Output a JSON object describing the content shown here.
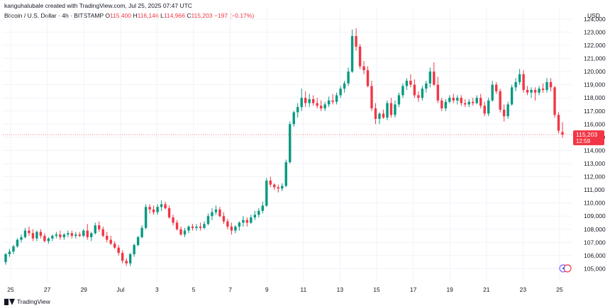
{
  "header": {
    "text": "kanguhalubale created with TradingView.com, Jul 25, 2025 07:47 UTC"
  },
  "legend": {
    "symbol": "Bitcoin / U.S. Dollar · 4h · BITSTAMP",
    "o_label": "O",
    "o_value": "115,400",
    "h_label": "H",
    "h_value": "116,146",
    "l_label": "L",
    "l_value": "114,966",
    "c_label": "C",
    "c_value": "115,203",
    "change": "−197 (−0.17%)"
  },
  "currency": "USD",
  "footer": {
    "brand": "TradingView"
  },
  "colors": {
    "up": "#089981",
    "down": "#f23645",
    "grid": "#f0f3fa",
    "text": "#131722",
    "tag": "#f23645"
  },
  "chart_data": {
    "type": "candlestick",
    "interval": "4h",
    "y_axis": {
      "min": 104000,
      "max": 124800,
      "ticks": [
        105000,
        106000,
        107000,
        108000,
        109000,
        110000,
        111000,
        112000,
        113000,
        114000,
        115000,
        116000,
        117000,
        118000,
        119000,
        120000,
        121000,
        122000,
        123000,
        124000
      ],
      "tick_labels": [
        "105,000",
        "106,000",
        "107,000",
        "108,000",
        "109,000",
        "110,000",
        "111,000",
        "112,000",
        "113,000",
        "114,000",
        "115,000",
        "116,000",
        "117,000",
        "118,000",
        "119,000",
        "120,000",
        "121,000",
        "122,000",
        "123,000",
        "124,000"
      ]
    },
    "x_axis": {
      "labels": [
        "25",
        "27",
        "29",
        "Jul",
        "3",
        "5",
        "7",
        "9",
        "11",
        "13",
        "15",
        "17",
        "19",
        "21",
        "23",
        "25"
      ]
    },
    "last_price": {
      "value": 115203,
      "label": "115,203",
      "countdown": "12:59"
    },
    "candles": [
      [
        105500,
        106200,
        105300,
        106100
      ],
      [
        106100,
        106500,
        105900,
        106300
      ],
      [
        106300,
        106800,
        106100,
        106700
      ],
      [
        106700,
        107300,
        106600,
        107200
      ],
      [
        107200,
        107600,
        107000,
        107400
      ],
      [
        107400,
        108100,
        107300,
        107900
      ],
      [
        107900,
        108200,
        107500,
        107700
      ],
      [
        107700,
        108000,
        107100,
        107300
      ],
      [
        107300,
        107900,
        107100,
        107800
      ],
      [
        107800,
        108000,
        107300,
        107500
      ],
      [
        107500,
        107700,
        107000,
        107100
      ],
      [
        107100,
        107400,
        106900,
        107300
      ],
      [
        107300,
        107600,
        107100,
        107500
      ],
      [
        107500,
        107800,
        107300,
        107600
      ],
      [
        107600,
        107900,
        107200,
        107400
      ],
      [
        107400,
        107700,
        107200,
        107600
      ],
      [
        107600,
        107900,
        107400,
        107700
      ],
      [
        107700,
        107900,
        107300,
        107500
      ],
      [
        107500,
        107800,
        107300,
        107600
      ],
      [
        107600,
        107800,
        107400,
        107500
      ],
      [
        107500,
        108000,
        107400,
        107900
      ],
      [
        107900,
        108400,
        107200,
        107400
      ],
      [
        107400,
        107800,
        107100,
        107700
      ],
      [
        107700,
        108500,
        107600,
        108300
      ],
      [
        108300,
        108600,
        107800,
        108000
      ],
      [
        108000,
        108200,
        107400,
        107500
      ],
      [
        107500,
        107800,
        107000,
        107200
      ],
      [
        107200,
        107500,
        106800,
        106900
      ],
      [
        106900,
        107100,
        106500,
        106600
      ],
      [
        106600,
        106800,
        106000,
        106200
      ],
      [
        106200,
        106400,
        105400,
        105600
      ],
      [
        105600,
        105800,
        105200,
        105400
      ],
      [
        105400,
        106200,
        105200,
        106100
      ],
      [
        106100,
        106900,
        105900,
        106800
      ],
      [
        106800,
        107500,
        106700,
        107400
      ],
      [
        107400,
        108300,
        107300,
        108100
      ],
      [
        108100,
        109900,
        108000,
        109700
      ],
      [
        109700,
        109900,
        109200,
        109500
      ],
      [
        109500,
        109800,
        109100,
        109300
      ],
      [
        109300,
        109900,
        109100,
        109700
      ],
      [
        109700,
        110200,
        109400,
        109900
      ],
      [
        109900,
        110100,
        109500,
        109600
      ],
      [
        109600,
        109800,
        108800,
        108900
      ],
      [
        108900,
        109100,
        108300,
        108500
      ],
      [
        108500,
        108700,
        107900,
        108000
      ],
      [
        108000,
        108200,
        107500,
        107600
      ],
      [
        107600,
        108100,
        107400,
        107900
      ],
      [
        107900,
        108300,
        107700,
        108200
      ],
      [
        108200,
        108400,
        107900,
        108100
      ],
      [
        108100,
        108400,
        107900,
        108200
      ],
      [
        108200,
        108500,
        107900,
        108100
      ],
      [
        108100,
        108600,
        108000,
        108400
      ],
      [
        108400,
        109200,
        108300,
        109000
      ],
      [
        109000,
        109600,
        108700,
        109300
      ],
      [
        109300,
        109800,
        109100,
        109500
      ],
      [
        109500,
        109700,
        108900,
        109000
      ],
      [
        109000,
        109300,
        108400,
        108600
      ],
      [
        108600,
        108800,
        108000,
        108200
      ],
      [
        108200,
        108500,
        107600,
        107900
      ],
      [
        107900,
        108300,
        107700,
        108200
      ],
      [
        108200,
        108600,
        107900,
        108500
      ],
      [
        108500,
        109000,
        108200,
        108700
      ],
      [
        108700,
        108900,
        108200,
        108500
      ],
      [
        108500,
        109100,
        108400,
        108900
      ],
      [
        108900,
        109400,
        108700,
        109100
      ],
      [
        109100,
        109600,
        108900,
        109400
      ],
      [
        109400,
        110100,
        109200,
        109800
      ],
      [
        109800,
        111900,
        109700,
        111700
      ],
      [
        111700,
        112000,
        111200,
        111400
      ],
      [
        111400,
        111500,
        111000,
        111200
      ],
      [
        111200,
        111400,
        110800,
        111100
      ],
      [
        111100,
        111500,
        110900,
        111300
      ],
      [
        111300,
        113300,
        111200,
        113100
      ],
      [
        113100,
        116200,
        113000,
        116000
      ],
      [
        116000,
        117000,
        115800,
        116900
      ],
      [
        116900,
        117600,
        116500,
        117300
      ],
      [
        117300,
        118700,
        117000,
        118000
      ],
      [
        118000,
        118500,
        117300,
        117600
      ],
      [
        117600,
        118300,
        117300,
        117900
      ],
      [
        117900,
        118200,
        117400,
        117600
      ],
      [
        117600,
        118000,
        117200,
        117400
      ],
      [
        117400,
        117800,
        117000,
        117200
      ],
      [
        117200,
        117700,
        117000,
        117500
      ],
      [
        117500,
        118100,
        117300,
        117800
      ],
      [
        117800,
        118300,
        117500,
        117700
      ],
      [
        117700,
        118400,
        117500,
        118200
      ],
      [
        118200,
        118900,
        118000,
        118700
      ],
      [
        118700,
        119300,
        118400,
        119100
      ],
      [
        119100,
        120300,
        118900,
        120000
      ],
      [
        120000,
        123200,
        119900,
        122700
      ],
      [
        122700,
        123300,
        121600,
        121900
      ],
      [
        121900,
        122100,
        120200,
        120400
      ],
      [
        120400,
        120800,
        119800,
        120100
      ],
      [
        120100,
        120400,
        118800,
        118900
      ],
      [
        118900,
        119300,
        117000,
        117200
      ],
      [
        117200,
        117600,
        116000,
        116400
      ],
      [
        116400,
        116900,
        116000,
        116800
      ],
      [
        116800,
        117100,
        116400,
        116500
      ],
      [
        116500,
        117800,
        116300,
        117600
      ],
      [
        117600,
        118000,
        116500,
        116700
      ],
      [
        116700,
        117800,
        116500,
        117500
      ],
      [
        117500,
        118400,
        117300,
        118200
      ],
      [
        118200,
        119100,
        118000,
        118900
      ],
      [
        118900,
        119500,
        118600,
        119300
      ],
      [
        119300,
        119800,
        118800,
        119000
      ],
      [
        119000,
        119400,
        118000,
        118200
      ],
      [
        118200,
        118500,
        117700,
        118000
      ],
      [
        118000,
        118900,
        117800,
        118700
      ],
      [
        118700,
        119300,
        118400,
        119100
      ],
      [
        119100,
        120300,
        118800,
        120000
      ],
      [
        120000,
        120700,
        118900,
        119000
      ],
      [
        119000,
        119600,
        117600,
        117800
      ],
      [
        117800,
        118000,
        117000,
        117200
      ],
      [
        117200,
        117900,
        117000,
        117700
      ],
      [
        117700,
        118200,
        117600,
        118000
      ],
      [
        118000,
        118300,
        117600,
        117800
      ],
      [
        117800,
        118200,
        117500,
        118000
      ],
      [
        118000,
        118200,
        117400,
        117600
      ],
      [
        117600,
        117900,
        117300,
        117500
      ],
      [
        117500,
        117900,
        117300,
        117700
      ],
      [
        117700,
        118000,
        117400,
        117600
      ],
      [
        117600,
        118200,
        117500,
        118000
      ],
      [
        118000,
        118300,
        117200,
        117400
      ],
      [
        117400,
        117700,
        116600,
        116800
      ],
      [
        116800,
        118000,
        116600,
        117800
      ],
      [
        117800,
        119300,
        117700,
        119000
      ],
      [
        119000,
        119200,
        118300,
        118500
      ],
      [
        118500,
        118700,
        116900,
        117100
      ],
      [
        117100,
        117500,
        116200,
        116600
      ],
      [
        116600,
        117700,
        116400,
        117500
      ],
      [
        117500,
        119000,
        117400,
        118800
      ],
      [
        118800,
        119500,
        118500,
        119200
      ],
      [
        119200,
        120200,
        119000,
        119800
      ],
      [
        119800,
        120100,
        118400,
        118600
      ],
      [
        118600,
        118900,
        118200,
        118400
      ],
      [
        118400,
        118800,
        118000,
        118600
      ],
      [
        118600,
        118800,
        117800,
        118400
      ],
      [
        118400,
        118900,
        118200,
        118700
      ],
      [
        118700,
        119100,
        118400,
        118600
      ],
      [
        118600,
        119500,
        118400,
        119200
      ],
      [
        119200,
        119500,
        118500,
        118800
      ],
      [
        118800,
        118900,
        116500,
        116700
      ],
      [
        116700,
        116900,
        115300,
        115500
      ],
      [
        115400,
        116146,
        114966,
        115203
      ]
    ]
  }
}
